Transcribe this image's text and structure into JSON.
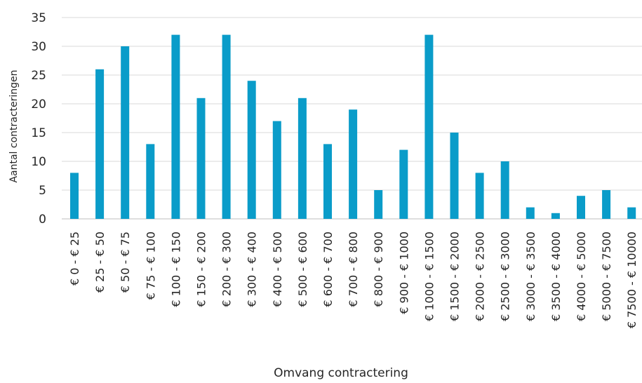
{
  "chart_data": {
    "type": "bar",
    "title": "",
    "xlabel": "Omvang contractering",
    "ylabel": "Aantal contracteringen",
    "ylim": [
      0,
      35
    ],
    "yticks": [
      "0",
      "5",
      "10",
      "15",
      "20",
      "25",
      "30",
      "35"
    ],
    "grid": "horizontal",
    "legend": "none",
    "bar_color": "#0A9CC9",
    "categories": [
      "€ 0 - € 25",
      "€ 25 - € 50",
      "€ 50 - € 75",
      "€ 75 - € 100",
      "€ 100 - € 150",
      "€ 150 - € 200",
      "€ 200 - € 300",
      "€ 300 - € 400",
      "€ 400 - € 500",
      "€ 500 - € 600",
      "€ 600 - € 700",
      "€ 700 - € 800",
      "€ 800 - € 900",
      "€ 900 - € 1000",
      "€ 1000 - € 1500",
      "€ 1500 - € 2000",
      "€ 2000 - € 2500",
      "€ 2500 - € 3000",
      "€ 3000 - € 3500",
      "€ 3500 - € 4000",
      "€ 4000 - € 5000",
      "€ 5000 - € 7500",
      "€ 7500 - € 10000"
    ],
    "values": [
      8,
      26,
      30,
      13,
      32,
      21,
      32,
      24,
      17,
      21,
      13,
      19,
      5,
      12,
      32,
      15,
      8,
      10,
      2,
      1,
      4,
      5,
      2
    ]
  }
}
